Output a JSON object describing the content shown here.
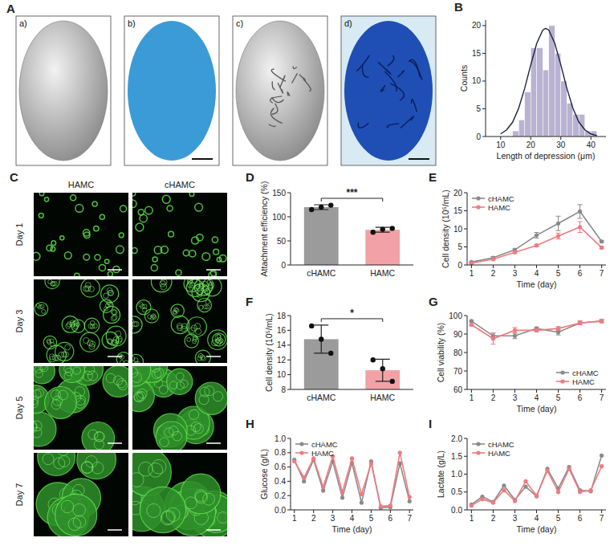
{
  "image_panels": [
    {
      "panel": "A",
      "labels": [
        "a)",
        "b)",
        "c)",
        "d)"
      ]
    },
    {
      "panel": "C",
      "columns": [
        "HAMC",
        "cHAMC"
      ],
      "rows": [
        "Day 1",
        "Day 3",
        "Day 5",
        "Day 7"
      ]
    }
  ],
  "chart_data": [
    {
      "panel": "B",
      "type": "histogram",
      "xlabel": "Length of depression (μm)",
      "ylabel": "Counts",
      "bins": [
        14,
        16,
        18,
        20,
        22,
        24,
        26,
        28,
        30,
        32,
        34,
        36,
        38,
        40,
        42
      ],
      "values": [
        1,
        3,
        8,
        16,
        16,
        12,
        20,
        15,
        10,
        6,
        4,
        4,
        1,
        1
      ],
      "color": "#bab2d2",
      "series": [
        {
          "type": "line",
          "color": "#1b2440",
          "x": [
            10,
            12,
            14,
            16,
            18,
            20,
            22,
            24,
            25,
            26,
            28,
            30,
            32,
            34,
            36,
            38,
            40,
            42
          ],
          "values": [
            0.47,
            1.2,
            2.6,
            5.1,
            8.7,
            12.9,
            16.8,
            19.2,
            19.5,
            19.2,
            16.8,
            12.9,
            8.7,
            5.1,
            2.6,
            1.2,
            0.47,
            0.16
          ]
        }
      ],
      "xlim": [
        5,
        45
      ],
      "xticks": [
        10,
        20,
        30,
        40
      ],
      "ylim": [
        0,
        21
      ],
      "yticks": [
        0,
        5,
        10,
        15,
        20
      ]
    },
    {
      "panel": "D",
      "type": "bar",
      "ylabel": "Attachment efficiency (%)",
      "categories": [
        "cHAMC",
        "HAMC"
      ],
      "values": [
        120,
        73
      ],
      "errors": [
        5,
        5
      ],
      "points": [
        [
          115,
          120,
          124
        ],
        [
          68,
          74,
          76
        ]
      ],
      "colors": [
        "#9b9b9b",
        "#f2a2a6"
      ],
      "annotations": [
        "***"
      ],
      "ylim": [
        0,
        150
      ],
      "yticks": [
        0,
        50,
        100,
        150
      ]
    },
    {
      "panel": "E",
      "type": "line",
      "xlabel": "Time (day)",
      "ylabel": "Cell density (10⁵/mL)",
      "x": [
        1,
        2,
        3,
        4,
        5,
        6,
        7
      ],
      "series": [
        {
          "name": "cHAMC",
          "color": "#8a8a8a",
          "marker": "circle",
          "values": [
            0.8,
            2.0,
            4.2,
            8.2,
            11.5,
            14.8,
            6.5
          ],
          "errors": [
            0.2,
            0.3,
            0.3,
            0.8,
            2.0,
            1.9,
            0.3
          ]
        },
        {
          "name": "HAMC",
          "color": "#f07a80",
          "marker": "circle",
          "values": [
            0.5,
            1.6,
            3.5,
            5.4,
            8.0,
            10.5,
            4.8
          ],
          "errors": [
            0.2,
            0.2,
            0.3,
            0.3,
            0.8,
            1.5,
            0.3
          ]
        }
      ],
      "legend": "upper left",
      "xlim": [
        0.8,
        7.2
      ],
      "xticks": [
        1,
        2,
        3,
        4,
        5,
        6,
        7
      ],
      "ylim": [
        0,
        20
      ],
      "yticks": [
        0,
        5,
        10,
        15,
        20
      ]
    },
    {
      "panel": "F",
      "type": "bar",
      "ylabel": "Cell density (10⁵/mL)",
      "categories": [
        "cHAMC",
        "HAMC"
      ],
      "values": [
        14.8,
        10.6
      ],
      "errors": [
        1.9,
        1.5
      ],
      "points": [
        [
          16.6,
          14.8,
          12.9
        ],
        [
          12.0,
          10.8,
          9.1
        ]
      ],
      "colors": [
        "#9b9b9b",
        "#f2a2a6"
      ],
      "annotations": [
        "*"
      ],
      "ylim": [
        8,
        18
      ],
      "yticks": [
        8,
        10,
        12,
        14,
        16,
        18
      ]
    },
    {
      "panel": "G",
      "type": "line",
      "xlabel": "Time (day)",
      "ylabel": "Cell viability (%)",
      "x": [
        1,
        2,
        3,
        4,
        5,
        6,
        7
      ],
      "series": [
        {
          "name": "cHAMC",
          "color": "#8a8a8a",
          "marker": "circle",
          "values": [
            97,
            89,
            89,
            93,
            91,
            96,
            97
          ],
          "errors": [
            0.5,
            1.5,
            1.5,
            0.8,
            1.5,
            1.0,
            0.8
          ]
        },
        {
          "name": "HAMC",
          "color": "#f07a80",
          "marker": "circle",
          "values": [
            95,
            87.5,
            92,
            92,
            93,
            96,
            97
          ],
          "errors": [
            0.5,
            3.0,
            1.5,
            0.8,
            1.0,
            1.0,
            0.8
          ]
        }
      ],
      "legend": "lower right",
      "xlim": [
        0.8,
        7.2
      ],
      "xticks": [
        1,
        2,
        3,
        4,
        5,
        6,
        7
      ],
      "ylim": [
        60,
        100
      ],
      "yticks": [
        60,
        70,
        80,
        90,
        100
      ]
    },
    {
      "panel": "H",
      "type": "line",
      "xlabel": "Time (day)",
      "ylabel": "Glucose (g/L)",
      "x": [
        1,
        1.5,
        2,
        2.5,
        3,
        3.5,
        4,
        4.5,
        5,
        5.5,
        6,
        6.5,
        7
      ],
      "series": [
        {
          "name": "cHAMC",
          "color": "#8a8a8a",
          "marker": "circle",
          "values": [
            0.7,
            0.4,
            0.7,
            0.27,
            0.68,
            0.17,
            0.66,
            0.1,
            0.68,
            0.03,
            0.04,
            0.65,
            0.12
          ]
        },
        {
          "name": "HAMC",
          "color": "#f07a80",
          "marker": "circle",
          "values": [
            0.68,
            0.45,
            0.72,
            0.32,
            0.75,
            0.25,
            0.72,
            0.22,
            0.65,
            0.05,
            0.06,
            0.8,
            0.18
          ]
        }
      ],
      "legend": "upper left",
      "xlim": [
        0.8,
        7.2
      ],
      "xticks": [
        1,
        2,
        3,
        4,
        5,
        6,
        7
      ],
      "ylim": [
        0,
        1.0
      ],
      "yticks": [
        {
          "value": 0,
          "label": "0.0"
        },
        0.2,
        0.4,
        0.6,
        0.8,
        {
          "value": 1,
          "label": "1.0"
        }
      ]
    },
    {
      "panel": "I",
      "type": "line",
      "xlabel": "Time (day)",
      "ylabel": "Lactate (g/L)",
      "x": [
        1,
        1.5,
        2,
        2.5,
        3,
        3.5,
        4,
        4.5,
        5,
        5.5,
        6,
        6.5,
        7
      ],
      "series": [
        {
          "name": "cHAMC",
          "color": "#8a8a8a",
          "marker": "circle",
          "values": [
            0.15,
            0.37,
            0.22,
            0.68,
            0.28,
            0.65,
            0.38,
            1.15,
            0.6,
            1.2,
            0.55,
            0.52,
            1.52
          ]
        },
        {
          "name": "HAMC",
          "color": "#f07a80",
          "marker": "circle",
          "values": [
            0.12,
            0.3,
            0.2,
            0.55,
            0.25,
            0.8,
            0.4,
            1.1,
            0.5,
            1.15,
            0.5,
            0.55,
            1.22
          ]
        }
      ],
      "legend": "upper left",
      "xlim": [
        0.8,
        7.2
      ],
      "xticks": [
        1,
        2,
        3,
        4,
        5,
        6,
        7
      ],
      "ylim": [
        0,
        2.0
      ],
      "yticks": [
        {
          "value": 0,
          "label": "0.0"
        },
        0.5,
        {
          "value": 1,
          "label": "1.0"
        },
        1.5,
        {
          "value": 2,
          "label": "2.0"
        }
      ]
    }
  ]
}
